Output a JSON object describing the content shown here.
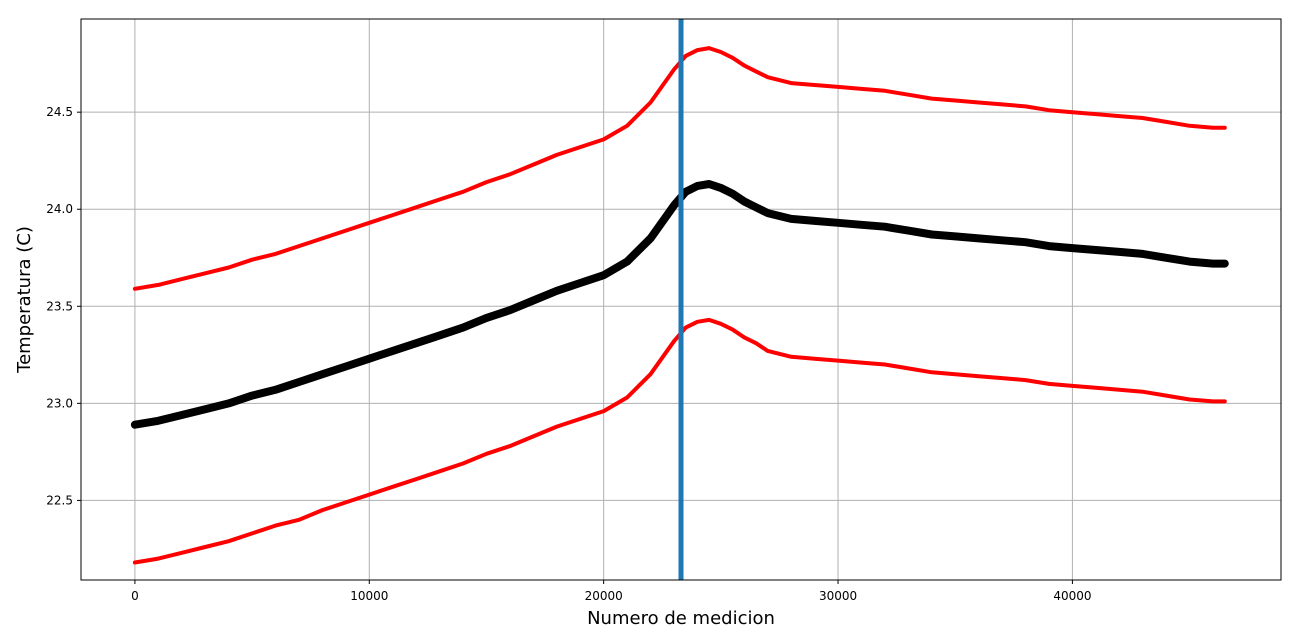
{
  "chart_data": {
    "type": "line",
    "title": "",
    "xlabel": "Numero de medicion",
    "ylabel": "Temperatura (C)",
    "xlim": [
      -2300,
      48900
    ],
    "ylim": [
      22.09,
      24.98
    ],
    "x_ticks": [
      0,
      10000,
      20000,
      30000,
      40000
    ],
    "x_tick_labels": [
      "0",
      "10000",
      "20000",
      "30000",
      "40000"
    ],
    "y_ticks": [
      22.5,
      23.0,
      23.5,
      24.0,
      24.5
    ],
    "y_tick_labels": [
      "22.5",
      "23.0",
      "23.5",
      "24.0",
      "24.5"
    ],
    "grid": true,
    "vertical_line": {
      "x": 23300,
      "color": "#1f77b4"
    },
    "series": [
      {
        "role": "upper",
        "color": "#ff0000",
        "points": [
          [
            0,
            23.59
          ],
          [
            1000,
            23.61
          ],
          [
            2000,
            23.64
          ],
          [
            3000,
            23.67
          ],
          [
            4000,
            23.7
          ],
          [
            5000,
            23.74
          ],
          [
            6000,
            23.77
          ],
          [
            7000,
            23.81
          ],
          [
            8000,
            23.85
          ],
          [
            9000,
            23.89
          ],
          [
            10000,
            23.93
          ],
          [
            11000,
            23.97
          ],
          [
            12000,
            24.01
          ],
          [
            13000,
            24.05
          ],
          [
            14000,
            24.09
          ],
          [
            15000,
            24.14
          ],
          [
            16000,
            24.18
          ],
          [
            17000,
            24.23
          ],
          [
            18000,
            24.28
          ],
          [
            19000,
            24.32
          ],
          [
            20000,
            24.36
          ],
          [
            21000,
            24.43
          ],
          [
            22000,
            24.55
          ],
          [
            23000,
            24.72
          ],
          [
            23500,
            24.79
          ],
          [
            24000,
            24.82
          ],
          [
            24500,
            24.83
          ],
          [
            25000,
            24.81
          ],
          [
            25500,
            24.78
          ],
          [
            26000,
            24.74
          ],
          [
            26500,
            24.71
          ],
          [
            27000,
            24.68
          ],
          [
            28000,
            24.65
          ],
          [
            29000,
            24.64
          ],
          [
            30000,
            24.63
          ],
          [
            31000,
            24.62
          ],
          [
            32000,
            24.61
          ],
          [
            33000,
            24.59
          ],
          [
            34000,
            24.57
          ],
          [
            35000,
            24.56
          ],
          [
            36000,
            24.55
          ],
          [
            37000,
            24.54
          ],
          [
            38000,
            24.53
          ],
          [
            39000,
            24.51
          ],
          [
            40000,
            24.5
          ],
          [
            41000,
            24.49
          ],
          [
            42000,
            24.48
          ],
          [
            43000,
            24.47
          ],
          [
            44000,
            24.45
          ],
          [
            45000,
            24.43
          ],
          [
            46000,
            24.42
          ],
          [
            46500,
            24.42
          ]
        ]
      },
      {
        "role": "mean",
        "color": "#000000",
        "points": [
          [
            0,
            22.89
          ],
          [
            1000,
            22.91
          ],
          [
            2000,
            22.94
          ],
          [
            3000,
            22.97
          ],
          [
            4000,
            23.0
          ],
          [
            5000,
            23.04
          ],
          [
            6000,
            23.07
          ],
          [
            7000,
            23.11
          ],
          [
            8000,
            23.15
          ],
          [
            9000,
            23.19
          ],
          [
            10000,
            23.23
          ],
          [
            11000,
            23.27
          ],
          [
            12000,
            23.31
          ],
          [
            13000,
            23.35
          ],
          [
            14000,
            23.39
          ],
          [
            15000,
            23.44
          ],
          [
            16000,
            23.48
          ],
          [
            17000,
            23.53
          ],
          [
            18000,
            23.58
          ],
          [
            19000,
            23.62
          ],
          [
            20000,
            23.66
          ],
          [
            21000,
            23.73
          ],
          [
            22000,
            23.85
          ],
          [
            23000,
            24.02
          ],
          [
            23500,
            24.09
          ],
          [
            24000,
            24.12
          ],
          [
            24500,
            24.13
          ],
          [
            25000,
            24.11
          ],
          [
            25500,
            24.08
          ],
          [
            26000,
            24.04
          ],
          [
            26500,
            24.01
          ],
          [
            27000,
            23.98
          ],
          [
            28000,
            23.95
          ],
          [
            29000,
            23.94
          ],
          [
            30000,
            23.93
          ],
          [
            31000,
            23.92
          ],
          [
            32000,
            23.91
          ],
          [
            33000,
            23.89
          ],
          [
            34000,
            23.87
          ],
          [
            35000,
            23.86
          ],
          [
            36000,
            23.85
          ],
          [
            37000,
            23.84
          ],
          [
            38000,
            23.83
          ],
          [
            39000,
            23.81
          ],
          [
            40000,
            23.8
          ],
          [
            41000,
            23.79
          ],
          [
            42000,
            23.78
          ],
          [
            43000,
            23.77
          ],
          [
            44000,
            23.75
          ],
          [
            45000,
            23.73
          ],
          [
            46000,
            23.72
          ],
          [
            46500,
            23.72
          ]
        ]
      },
      {
        "role": "lower",
        "color": "#ff0000",
        "points": [
          [
            0,
            22.18
          ],
          [
            1000,
            22.2
          ],
          [
            2000,
            22.23
          ],
          [
            3000,
            22.26
          ],
          [
            4000,
            22.29
          ],
          [
            5000,
            22.33
          ],
          [
            6000,
            22.37
          ],
          [
            7000,
            22.4
          ],
          [
            8000,
            22.45
          ],
          [
            9000,
            22.49
          ],
          [
            10000,
            22.53
          ],
          [
            11000,
            22.57
          ],
          [
            12000,
            22.61
          ],
          [
            13000,
            22.65
          ],
          [
            14000,
            22.69
          ],
          [
            15000,
            22.74
          ],
          [
            16000,
            22.78
          ],
          [
            17000,
            22.83
          ],
          [
            18000,
            22.88
          ],
          [
            19000,
            22.92
          ],
          [
            20000,
            22.96
          ],
          [
            21000,
            23.03
          ],
          [
            22000,
            23.15
          ],
          [
            23000,
            23.32
          ],
          [
            23500,
            23.39
          ],
          [
            24000,
            23.42
          ],
          [
            24500,
            23.43
          ],
          [
            25000,
            23.41
          ],
          [
            25500,
            23.38
          ],
          [
            26000,
            23.34
          ],
          [
            26500,
            23.31
          ],
          [
            27000,
            23.27
          ],
          [
            28000,
            23.24
          ],
          [
            29000,
            23.23
          ],
          [
            30000,
            23.22
          ],
          [
            31000,
            23.21
          ],
          [
            32000,
            23.2
          ],
          [
            33000,
            23.18
          ],
          [
            34000,
            23.16
          ],
          [
            35000,
            23.15
          ],
          [
            36000,
            23.14
          ],
          [
            37000,
            23.13
          ],
          [
            38000,
            23.12
          ],
          [
            39000,
            23.1
          ],
          [
            40000,
            23.09
          ],
          [
            41000,
            23.08
          ],
          [
            42000,
            23.07
          ],
          [
            43000,
            23.06
          ],
          [
            44000,
            23.04
          ],
          [
            45000,
            23.02
          ],
          [
            46000,
            23.01
          ],
          [
            46500,
            23.01
          ]
        ]
      }
    ]
  }
}
